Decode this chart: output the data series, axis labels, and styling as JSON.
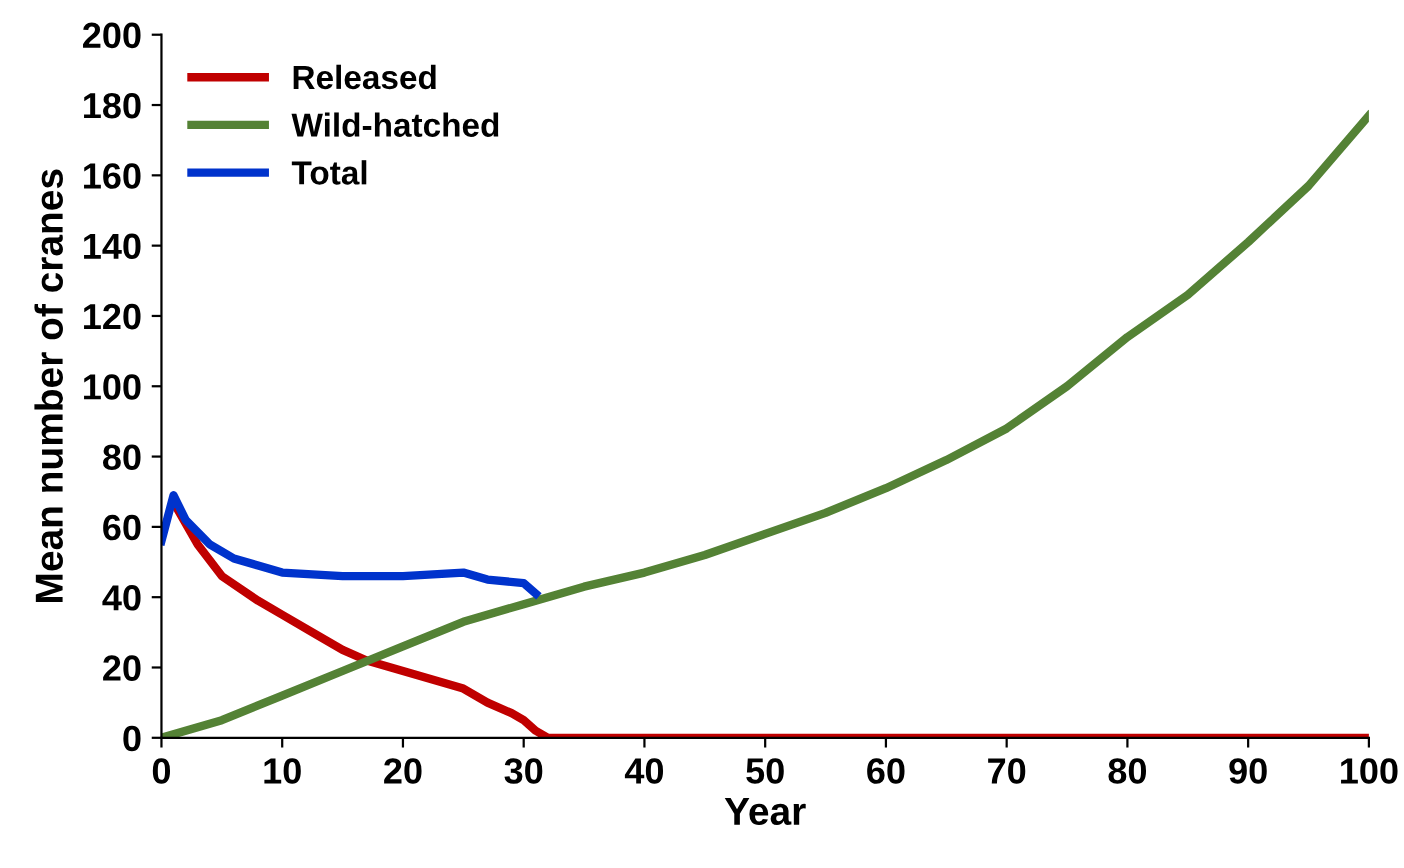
{
  "chart_data": {
    "type": "line",
    "xlabel": "Year",
    "ylabel": "Mean number of cranes",
    "xlim": [
      0,
      100
    ],
    "xticks": [
      0,
      10,
      20,
      30,
      40,
      50,
      60,
      70,
      80,
      90,
      100
    ],
    "ylim": [
      0,
      200
    ],
    "yticks": [
      0,
      20,
      40,
      60,
      80,
      100,
      120,
      140,
      160,
      180,
      200
    ],
    "grid": false,
    "legend": "top left",
    "marker": "none",
    "line_style": "solid",
    "series": [
      {
        "name": "Released",
        "color": "#c00000",
        "x": [
          1,
          3,
          5,
          8,
          10,
          13,
          15,
          17,
          20,
          22,
          25,
          27,
          29,
          30,
          31,
          32,
          100
        ],
        "values": [
          67,
          55,
          46,
          39,
          35,
          29,
          25,
          22,
          19,
          17,
          14,
          10,
          7,
          5,
          2,
          0,
          0
        ]
      },
      {
        "name": "Wild-hatched",
        "color": "#548235",
        "x": [
          0,
          5,
          10,
          15,
          20,
          25,
          30,
          35,
          40,
          45,
          50,
          55,
          60,
          65,
          70,
          75,
          80,
          85,
          90,
          95,
          100
        ],
        "values": [
          0,
          5,
          12,
          19,
          26,
          33,
          38,
          43,
          47,
          52,
          58,
          64,
          71,
          79,
          88,
          100,
          114,
          126,
          141,
          157,
          177
        ]
      },
      {
        "name": "Total",
        "color": "#0033cc",
        "x": [
          0,
          1,
          2,
          4,
          6,
          8,
          10,
          15,
          20,
          25,
          27,
          30,
          31
        ],
        "values": [
          56,
          69,
          62,
          55,
          51,
          49,
          47,
          46,
          46,
          47,
          45,
          44,
          41
        ]
      }
    ]
  }
}
